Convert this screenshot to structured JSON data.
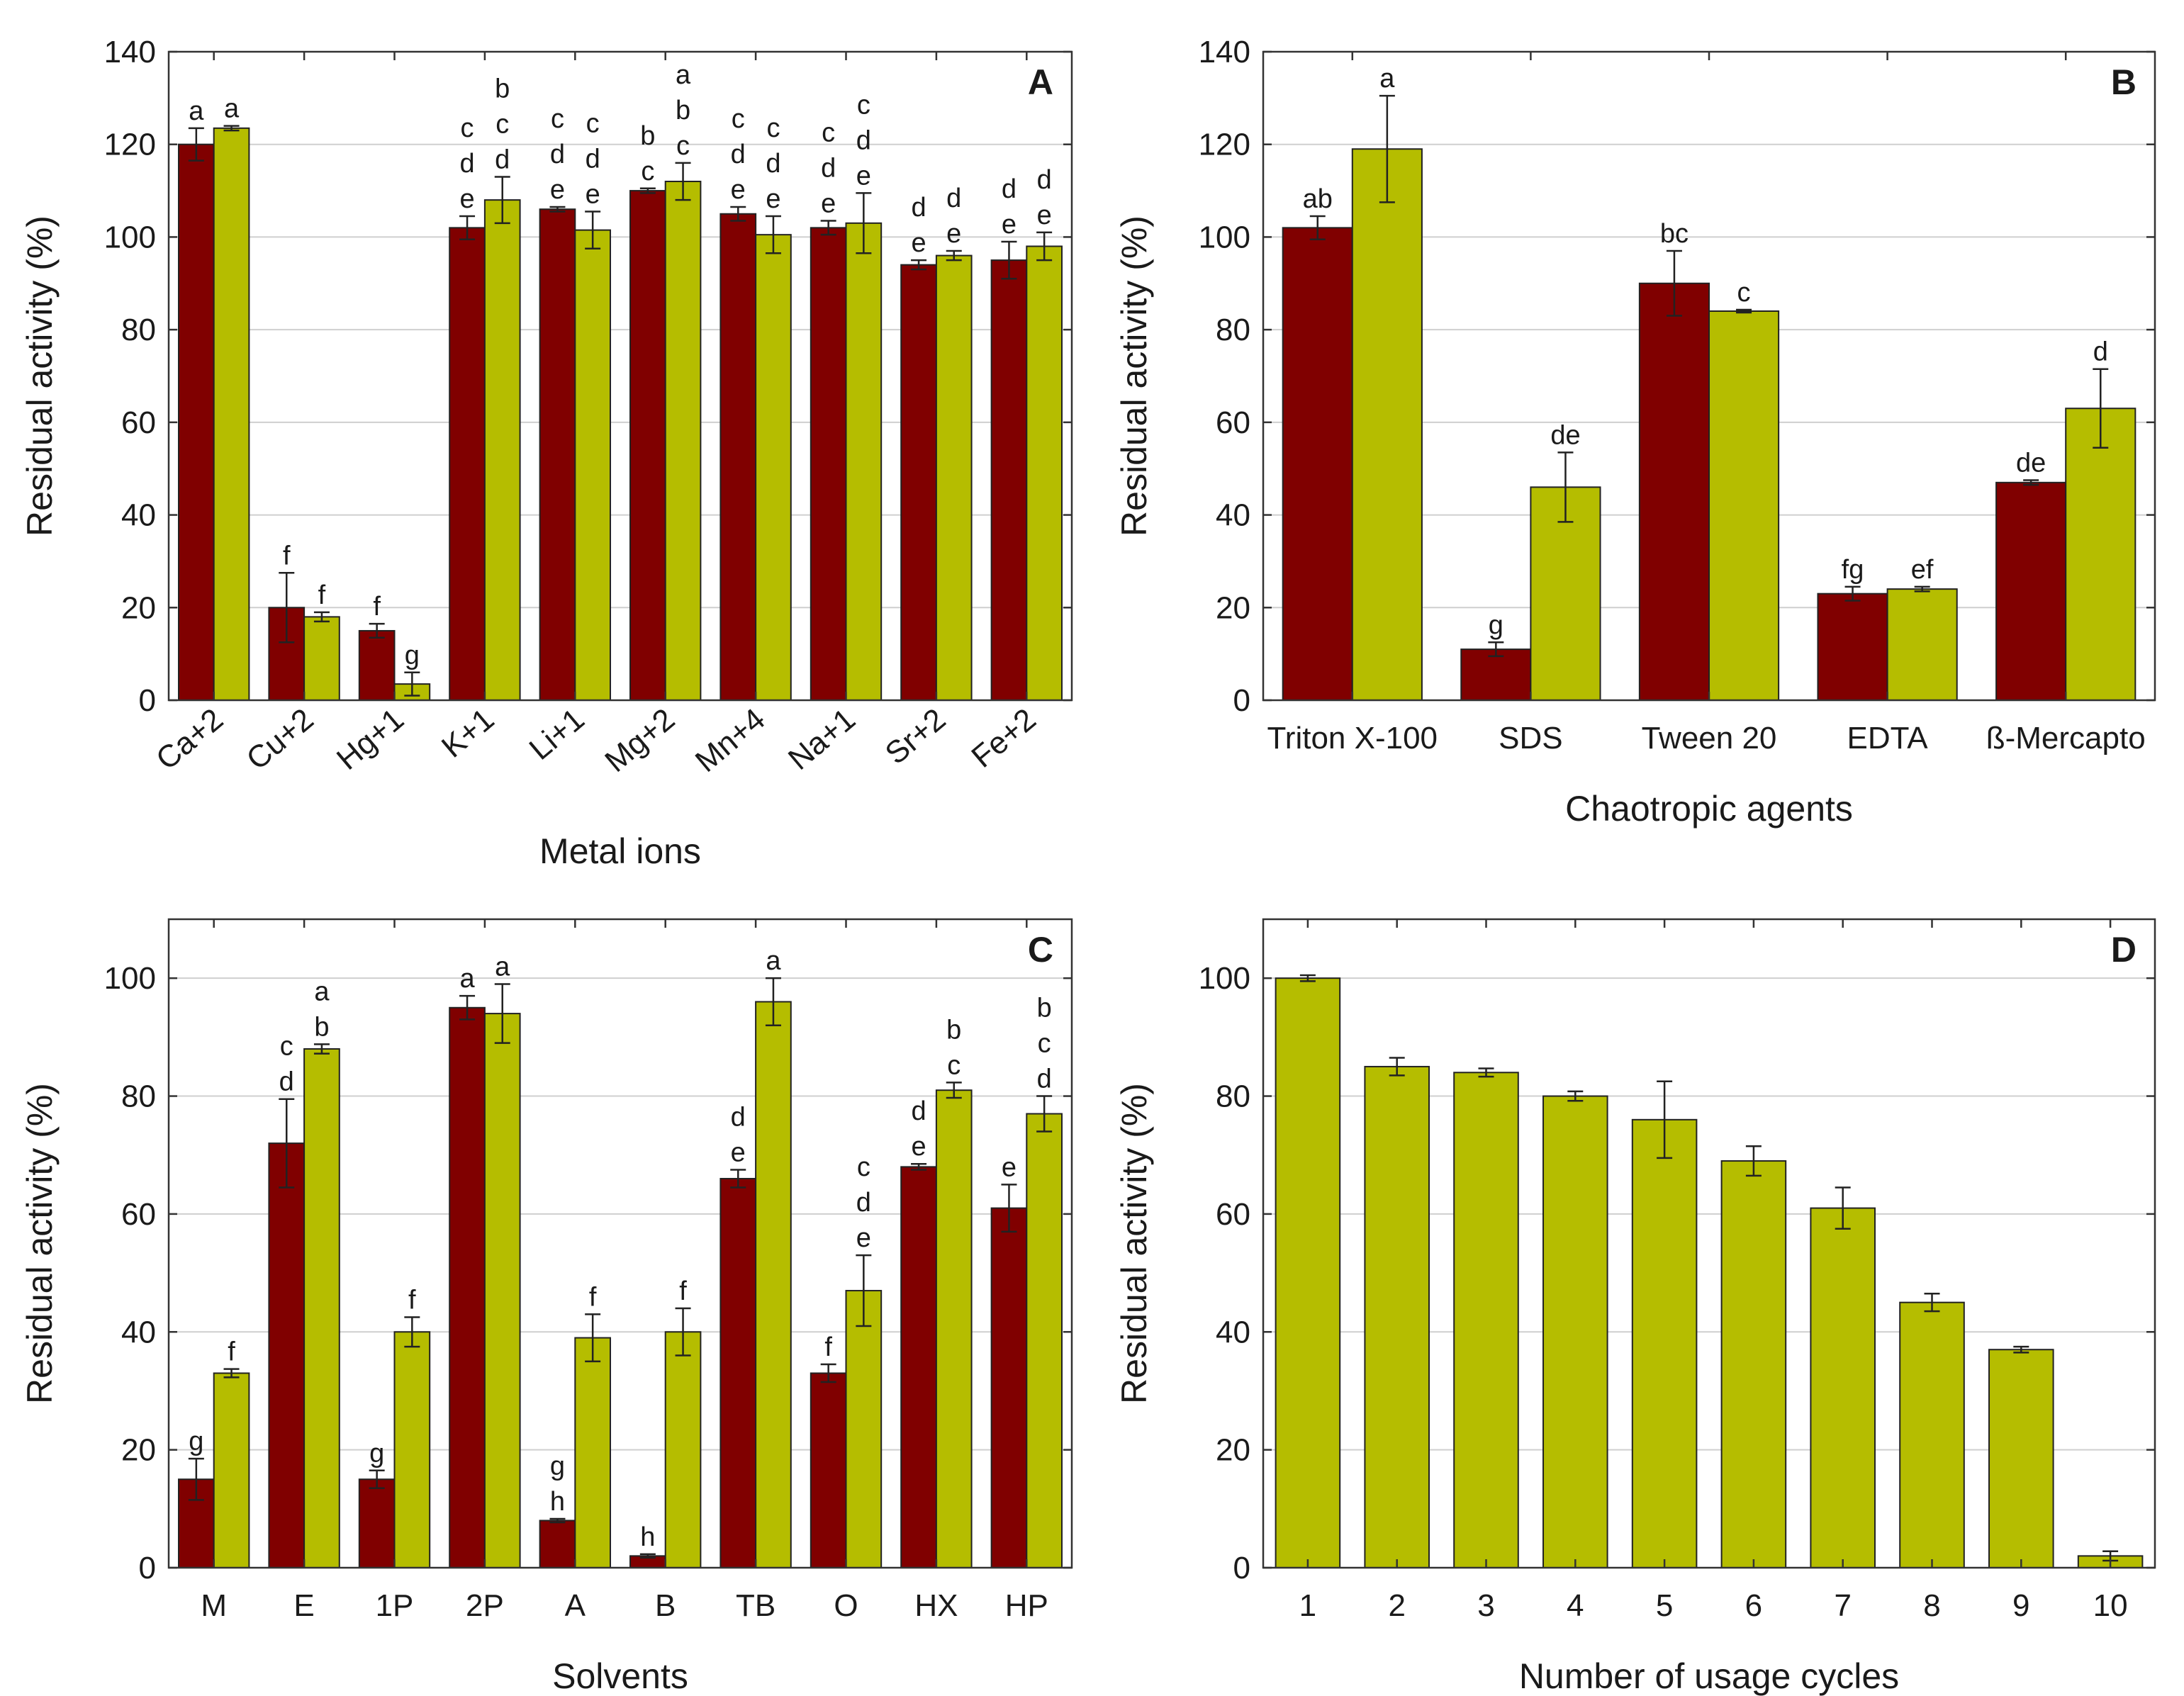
{
  "colors": {
    "series1": "#800000",
    "series2": "#b5bd00"
  },
  "chart_data": [
    {
      "panel": "A",
      "type": "bar",
      "title": "",
      "xlabel": "Metal ions",
      "ylabel": "Residual activity (%)",
      "ylim": [
        0,
        140
      ],
      "yticks": [
        0,
        20,
        40,
        60,
        80,
        100,
        120,
        140
      ],
      "grid": true,
      "rotate_x_labels": true,
      "categories": [
        "Ca+2",
        "Cu+2",
        "Hg+1",
        "K+1",
        "Li+1",
        "Mg+2",
        "Mn+4",
        "Na+1",
        "Sr+2",
        "Fe+2"
      ],
      "series": [
        {
          "name": "Series 1",
          "color": "#800000",
          "values": [
            120,
            20,
            15,
            102,
            106,
            110,
            105,
            102,
            94,
            95
          ],
          "errors": [
            3.5,
            7.5,
            1.5,
            2.5,
            0.5,
            0.5,
            1.5,
            1.5,
            1,
            4
          ],
          "labels": [
            "a",
            "f",
            "f",
            "c\nd\ne",
            "c\nd\ne",
            "b\nc",
            "c\nd\ne",
            "c\nd\ne",
            "d\ne",
            "d\ne"
          ]
        },
        {
          "name": "Series 2",
          "color": "#b5bd00",
          "values": [
            123.5,
            18,
            3.5,
            108,
            101.5,
            112,
            100.5,
            103,
            96,
            98
          ],
          "errors": [
            0.5,
            1,
            2.5,
            5,
            4,
            4,
            4,
            6.5,
            1,
            3
          ],
          "labels": [
            "a",
            "f",
            "g",
            "b\nc\nd",
            "c\nd\ne",
            "a\nb\nc",
            "c\nd\ne",
            "c\nd\ne",
            "d\ne",
            "d\ne"
          ]
        }
      ]
    },
    {
      "panel": "B",
      "type": "bar",
      "title": "",
      "xlabel": "Chaotropic agents",
      "ylabel": "Residual activity (%)",
      "ylim": [
        0,
        140
      ],
      "yticks": [
        0,
        20,
        40,
        60,
        80,
        100,
        120,
        140
      ],
      "grid": true,
      "rotate_x_labels": false,
      "categories": [
        "Triton X-100",
        "SDS",
        "Tween 20",
        "EDTA",
        "ß-Mercapto"
      ],
      "series": [
        {
          "name": "Series 1",
          "color": "#800000",
          "values": [
            102,
            11,
            90,
            23,
            47
          ],
          "errors": [
            2.5,
            1.5,
            7,
            1.5,
            0.5
          ],
          "labels": [
            "ab",
            "g",
            "bc",
            "fg",
            "de"
          ]
        },
        {
          "name": "Series 2",
          "color": "#b5bd00",
          "values": [
            119,
            46,
            84,
            24,
            63
          ],
          "errors": [
            11.5,
            7.5,
            0.3,
            0.5,
            8.5
          ],
          "labels": [
            "a",
            "de",
            "c",
            "ef",
            "d"
          ]
        }
      ]
    },
    {
      "panel": "C",
      "type": "bar",
      "title": "",
      "xlabel": "Solvents",
      "ylabel": "Residual activity (%)",
      "ylim": [
        0,
        110
      ],
      "yticks": [
        0,
        20,
        40,
        60,
        80,
        100
      ],
      "grid": true,
      "rotate_x_labels": false,
      "categories": [
        "M",
        "E",
        "1P",
        "2P",
        "A",
        "B",
        "TB",
        "O",
        "HX",
        "HP"
      ],
      "series": [
        {
          "name": "Series 1",
          "color": "#800000",
          "values": [
            15,
            72,
            15,
            95,
            8,
            2,
            66,
            33,
            68,
            61
          ],
          "errors": [
            3.5,
            7.5,
            1.5,
            2,
            0.3,
            0.3,
            1.5,
            1.5,
            0.5,
            4
          ],
          "labels": [
            "g",
            "c\nd",
            "g",
            "a",
            "g\nh",
            "h",
            "d\ne",
            "f",
            "d\ne",
            "e"
          ]
        },
        {
          "name": "Series 2",
          "color": "#b5bd00",
          "values": [
            33,
            88,
            40,
            94,
            39,
            40,
            96,
            47,
            81,
            77
          ],
          "errors": [
            0.7,
            0.8,
            2.5,
            5,
            4,
            4,
            4,
            6,
            1.3,
            3
          ],
          "labels": [
            "f",
            "a\nb",
            "f",
            "a",
            "f",
            "f",
            "a",
            "c\nd\ne",
            "b\nc",
            "b\nc\nd"
          ]
        }
      ]
    },
    {
      "panel": "D",
      "type": "bar",
      "title": "",
      "xlabel": "Number of usage cycles",
      "ylabel": "Residual activity (%)",
      "ylim": [
        0,
        110
      ],
      "yticks": [
        0,
        20,
        40,
        60,
        80,
        100
      ],
      "grid": true,
      "rotate_x_labels": false,
      "categories": [
        "1",
        "2",
        "3",
        "4",
        "5",
        "6",
        "7",
        "8",
        "9",
        "10"
      ],
      "series": [
        {
          "name": "Series 2",
          "color": "#b5bd00",
          "values": [
            100,
            85,
            84,
            80,
            76,
            69,
            61,
            45,
            37,
            2
          ],
          "errors": [
            0.5,
            1.5,
            0.7,
            0.8,
            6.5,
            2.5,
            3.5,
            1.5,
            0.5,
            0.8
          ],
          "labels": [
            "",
            "",
            "",
            "",
            "",
            "",
            "",
            "",
            "",
            ""
          ]
        }
      ]
    }
  ]
}
